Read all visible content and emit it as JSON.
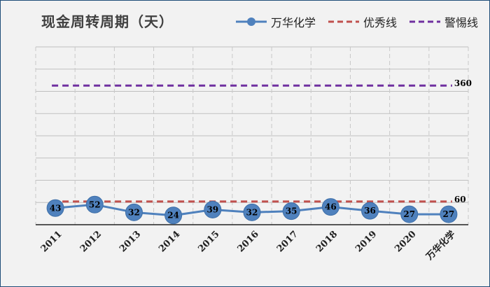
{
  "chart_data": {
    "type": "line",
    "title": "现金周转周期（天）",
    "categories": [
      "2011",
      "2012",
      "2013",
      "2014",
      "2015",
      "2016",
      "2017",
      "2018",
      "2019",
      "2020",
      "万华化学"
    ],
    "series": [
      {
        "name": "万华化学",
        "values": [
          43,
          52,
          32,
          24,
          39,
          32,
          35,
          46,
          36,
          27,
          27
        ],
        "color": "#4f81bd"
      }
    ],
    "reference_lines": [
      {
        "name": "优秀线",
        "value": 60,
        "label": "60",
        "color": "#c0504d",
        "style": "dashed"
      },
      {
        "name": "警惕线",
        "value": 360,
        "label": "360",
        "color": "#7030a0",
        "style": "dashed"
      }
    ],
    "ylim": [
      0,
      460
    ],
    "grid": true,
    "legend_position": "top-right"
  }
}
